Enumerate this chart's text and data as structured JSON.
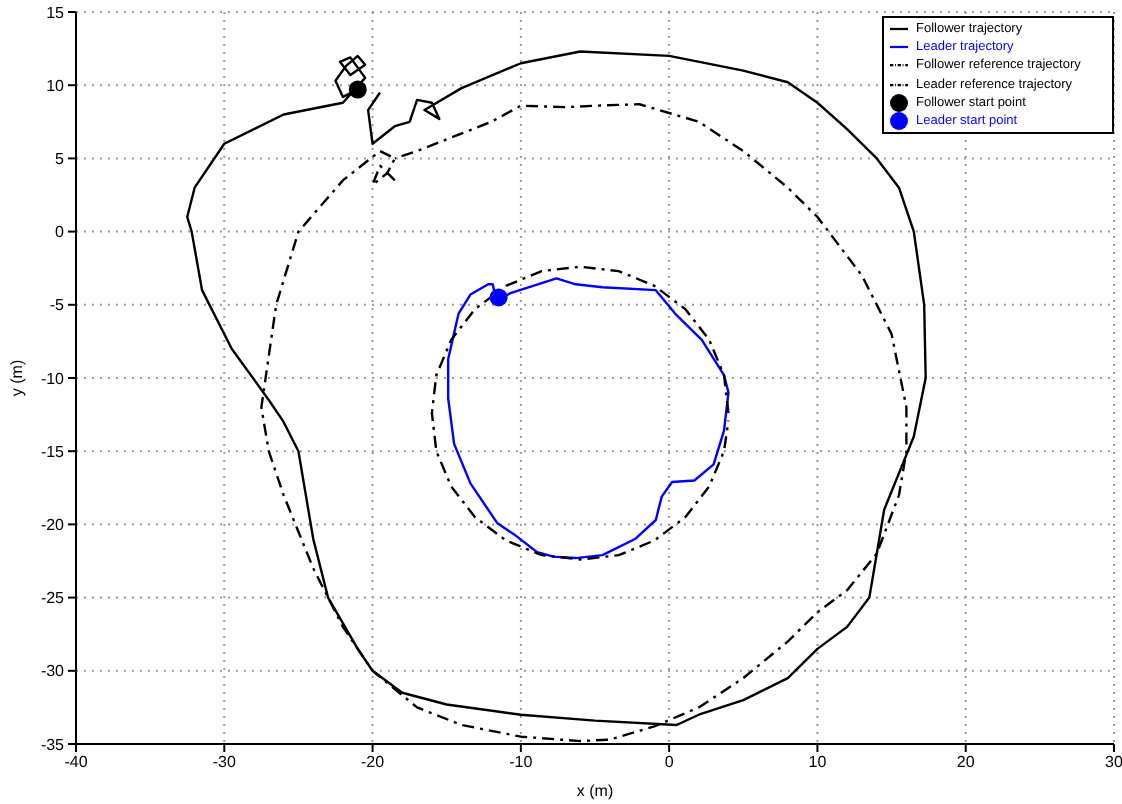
{
  "chart_data": {
    "type": "line",
    "xlabel": "x (m)",
    "ylabel": "y (m)",
    "xlim": [
      -40,
      30
    ],
    "xticks": [
      -40,
      -30,
      -20,
      -10,
      0,
      10,
      20,
      30
    ],
    "ylim": [
      -35,
      15
    ],
    "yticks": [
      -35,
      -30,
      -25,
      -20,
      -15,
      -10,
      -5,
      0,
      5,
      10,
      15
    ],
    "grid": true,
    "legend": "top right",
    "marker": "none",
    "series": [
      {
        "name": "Follower trajectory",
        "type": "line",
        "line_style": "solid",
        "color": "#000000",
        "x": [
          -21,
          -22,
          -22.5,
          -21.8,
          -21,
          -20.5,
          -21.5,
          -22.2,
          -21.5,
          -20.5,
          -22,
          -26,
          -30,
          -32,
          -32.5,
          -32.2,
          -31.5,
          -29.5,
          -27,
          -26,
          -25,
          -24.5,
          -24,
          -23,
          -21,
          -20,
          -18,
          -15,
          -10,
          -5,
          0.5,
          2,
          5,
          8,
          10,
          12,
          13.5,
          14,
          14.5,
          15.5,
          16.5,
          17.3,
          17.2,
          16.5,
          15.5,
          14,
          12,
          10,
          8,
          5,
          0,
          -6,
          -10,
          -14,
          -16.5,
          -15.5,
          -16,
          -17,
          -17.5,
          -18.5,
          -20,
          -20.3,
          -19.5
        ],
        "values": [
          9.7,
          9.2,
          10.3,
          11.3,
          12,
          11.4,
          10.7,
          11.6,
          11.9,
          10.5,
          8.8,
          8,
          6,
          3,
          1,
          0,
          -4,
          -8,
          -11.5,
          -13,
          -15,
          -18,
          -21,
          -25,
          -28.5,
          -30,
          -31.5,
          -32.3,
          -33,
          -33.4,
          -33.7,
          -33,
          -32,
          -30.5,
          -28.5,
          -27,
          -25,
          -22,
          -19,
          -16.5,
          -14,
          -10,
          -5,
          0,
          3,
          5,
          7,
          8.8,
          10.2,
          11,
          12,
          12.3,
          11.5,
          9.8,
          8.3,
          7.7,
          8.8,
          9,
          7.5,
          7.2,
          6,
          8.3,
          9.5
        ]
      },
      {
        "name": "Leader trajectory",
        "type": "line",
        "line_style": "solid",
        "color": "#0000ff",
        "x": [
          -11.4,
          -10.7,
          -7.6,
          -6.3,
          -4.5,
          -0.9,
          0.4,
          2.2,
          3.7,
          4.0,
          3.7,
          3.0,
          1.7,
          0.2,
          -0.5,
          -0.9,
          -2.3,
          -4.5,
          -6.3,
          -7.8,
          -8.9,
          -10.3,
          -11.6,
          -13.4,
          -14.5,
          -14.9,
          -14.9,
          -14.2,
          -13.4,
          -12.2,
          -11.9,
          -11.6
        ],
        "values": [
          -4.6,
          -4.2,
          -3.2,
          -3.6,
          -3.8,
          -4.0,
          -5.6,
          -7.4,
          -9.8,
          -11,
          -13.6,
          -15.9,
          -17,
          -17.1,
          -18.1,
          -19.7,
          -21,
          -22.1,
          -22.3,
          -22.2,
          -21.9,
          -20.8,
          -19.9,
          -17.2,
          -14.5,
          -11.4,
          -8.7,
          -5.6,
          -4.3,
          -3.6,
          -3.6,
          -4.9
        ]
      },
      {
        "name": "Follower reference trajectory",
        "type": "line",
        "line_style": "dashed",
        "color": "#000000",
        "x": [
          -18.5,
          -19.5,
          -20,
          -19,
          -18.5,
          -19.5,
          -22,
          -25,
          -26.5,
          -27.5,
          -27,
          -26,
          -24,
          -22,
          -20,
          -17,
          -14,
          -10,
          -6,
          -4,
          -1,
          2,
          5,
          8,
          10,
          12,
          14,
          15.5,
          16,
          16,
          15,
          13,
          10,
          8,
          5,
          2,
          -2,
          -5,
          -7,
          -10,
          -12,
          -15,
          -17,
          -18.5
        ],
        "values": [
          3.5,
          4.5,
          3.2,
          4,
          5,
          5.5,
          3.5,
          0,
          -5,
          -12,
          -15,
          -18,
          -23,
          -27,
          -30,
          -32.5,
          -33.7,
          -34.5,
          -34.8,
          -34.7,
          -33.8,
          -32.5,
          -30.5,
          -28,
          -26,
          -24.5,
          -22,
          -18,
          -15,
          -12,
          -7,
          -3,
          1,
          3,
          5.5,
          7.5,
          8.7,
          8.6,
          8.5,
          8.6,
          7.5,
          6.3,
          5.5,
          5
        ]
      },
      {
        "name": "Leader reference trajectory",
        "type": "line",
        "line_style": "dashed",
        "color": "#000000",
        "x": [
          4,
          3.7,
          2.7,
          1.1,
          -1,
          -3.4,
          -6,
          -8.6,
          -11,
          -13.1,
          -14.7,
          -15.7,
          -16,
          -15.7,
          -14.7,
          -13.1,
          -11,
          -8.6,
          -6,
          -3.4,
          -1,
          1.1,
          2.7,
          3.7,
          4.0
        ],
        "values": [
          -12.4,
          -9.8,
          -7.4,
          -5.3,
          -3.7,
          -2.7,
          -2.4,
          -2.7,
          -3.7,
          -5.3,
          -7.4,
          -9.8,
          -12.4,
          -15,
          -17.4,
          -19.5,
          -21.1,
          -22.1,
          -22.4,
          -22.1,
          -21.1,
          -19.5,
          -17.4,
          -15,
          -12.9
        ]
      },
      {
        "name": "Follower start point",
        "type": "scatter",
        "marker": "circle",
        "color": "#000000",
        "x": [
          -21
        ],
        "values": [
          9.7
        ]
      },
      {
        "name": "Leader start point",
        "type": "scatter",
        "marker": "circle",
        "color": "#0000ff",
        "x": [
          -11.5
        ],
        "values": [
          -4.5
        ]
      }
    ]
  }
}
